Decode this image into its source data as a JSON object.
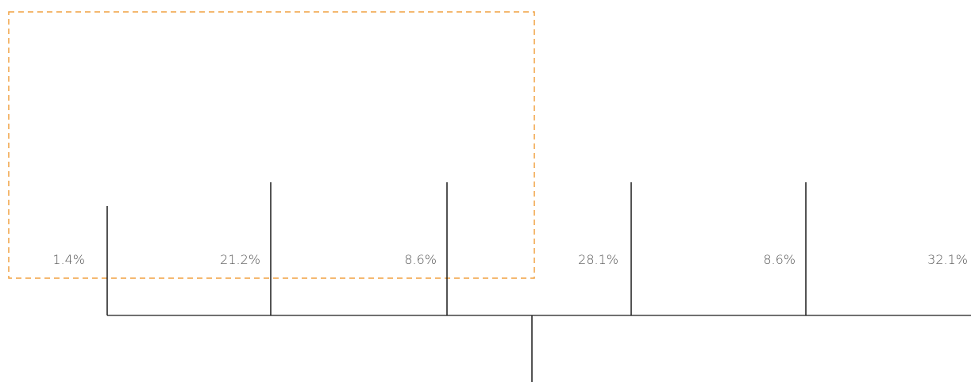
{
  "diagram": {
    "segments": [
      {
        "label": "1.4%",
        "value": 1.4
      },
      {
        "label": "21.2%",
        "value": 21.2
      },
      {
        "label": "8.6%",
        "value": 8.6
      },
      {
        "label": "28.1%",
        "value": 28.1
      },
      {
        "label": "8.6%",
        "value": 8.6
      },
      {
        "label": "32.1%",
        "value": 32.1
      }
    ],
    "highlight_color": "#F0A040",
    "line_color": "#1a1a1a",
    "label_color": "#555555"
  }
}
